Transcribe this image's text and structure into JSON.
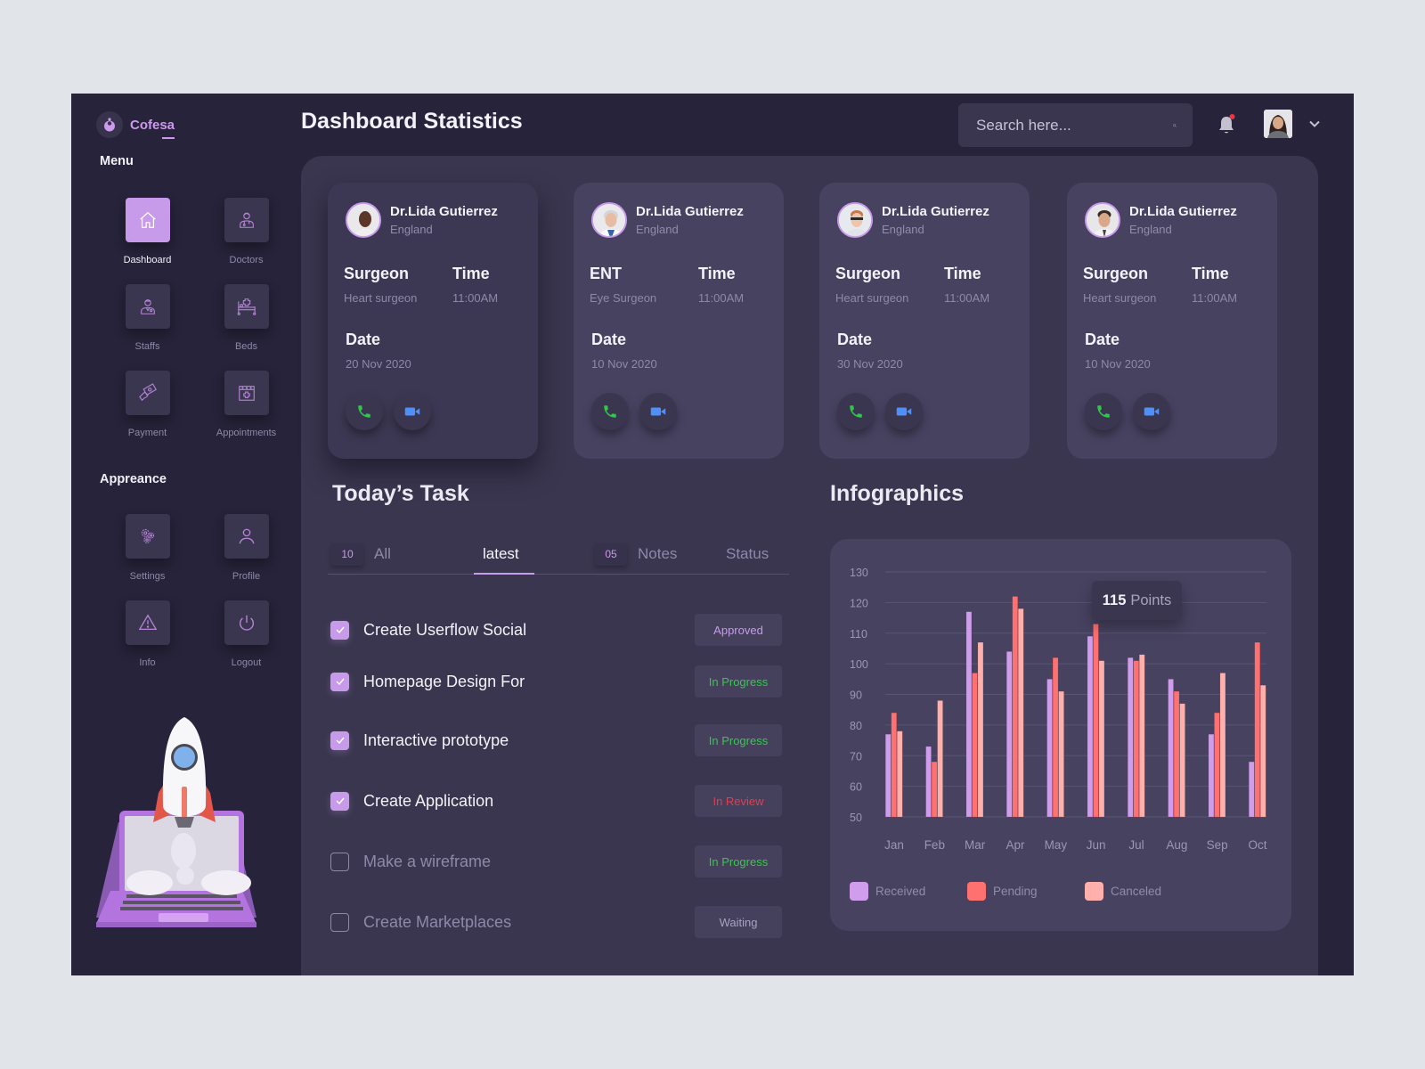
{
  "brand": {
    "name": "Cofesa"
  },
  "header": {
    "title": "Dashboard Statistics",
    "search_placeholder": "Search here..."
  },
  "sidebar": {
    "menu_label": "Menu",
    "menu_items": [
      {
        "label": "Dashboard",
        "icon": "home-icon",
        "active": true
      },
      {
        "label": "Doctors",
        "icon": "doctor-icon"
      },
      {
        "label": "Staffs",
        "icon": "staff-icon"
      },
      {
        "label": "Beds",
        "icon": "bed-icon"
      },
      {
        "label": "Payment",
        "icon": "payment-icon"
      },
      {
        "label": "Appointments",
        "icon": "calendar-icon"
      }
    ],
    "appearance_label": "Appreance",
    "appearance_items": [
      {
        "label": "Settings",
        "icon": "gear-icon"
      },
      {
        "label": "Profile",
        "icon": "user-icon"
      },
      {
        "label": "Info",
        "icon": "warning-icon"
      },
      {
        "label": "Logout",
        "icon": "power-icon"
      }
    ]
  },
  "doctors": [
    {
      "name": "Dr.Lida Gutierrez",
      "location": "England",
      "specialty": "Surgeon",
      "subspecialty": "Heart surgeon",
      "time_label": "Time",
      "time": "11:00AM",
      "date_label": "Date",
      "date": "20 Nov 2020"
    },
    {
      "name": "Dr.Lida Gutierrez",
      "location": "England",
      "specialty": "ENT",
      "subspecialty": "Eye Surgeon",
      "time_label": "Time",
      "time": "11:00AM",
      "date_label": "Date",
      "date": "10 Nov 2020"
    },
    {
      "name": "Dr.Lida Gutierrez",
      "location": "England",
      "specialty": "Surgeon",
      "subspecialty": "Heart surgeon",
      "time_label": "Time",
      "time": "11:00AM",
      "date_label": "Date",
      "date": "30 Nov 2020"
    },
    {
      "name": "Dr.Lida Gutierrez",
      "location": "England",
      "specialty": "Surgeon",
      "subspecialty": "Heart surgeon",
      "time_label": "Time",
      "time": "11:00AM",
      "date_label": "Date",
      "date": "10 Nov 2020"
    }
  ],
  "tasks": {
    "title": "Today’s Task",
    "tabs": [
      {
        "count": "10",
        "label": "All"
      },
      {
        "label": "latest",
        "active": true
      },
      {
        "count": "05",
        "label": "Notes"
      },
      {
        "label": "Status"
      }
    ],
    "items": [
      {
        "label": "Create Userflow Social",
        "done": true,
        "status": "Approved"
      },
      {
        "label": "Homepage Design For",
        "done": true,
        "status": "In Progress"
      },
      {
        "label": "Interactive prototype",
        "done": true,
        "status": "In Progress"
      },
      {
        "label": "Create Application",
        "done": true,
        "status": "In Review"
      },
      {
        "label": "Make a wireframe",
        "done": false,
        "status": "In Progress"
      },
      {
        "label": "Create Marketplaces",
        "done": false,
        "status": "Waiting"
      }
    ]
  },
  "colors": {
    "accent": "#c89aea",
    "received": "#cf9deb",
    "pending": "#ff7070",
    "canceled": "#ffb0ac",
    "approved": "#c89aea",
    "in_progress": "#35c94a",
    "in_review": "#e43d4f",
    "waiting": "#a7a3c0",
    "phone": "#2fc94a",
    "video": "#4f8ff7"
  },
  "infographics": {
    "title": "Infographics",
    "tooltip": {
      "value": "115",
      "unit": "Points"
    }
  },
  "chart_data": {
    "type": "bar",
    "title": "Infographics",
    "xlabel": "",
    "ylabel": "",
    "categories": [
      "Jan",
      "Feb",
      "Mar",
      "Apr",
      "May",
      "Jun",
      "Jul",
      "Aug",
      "Sep",
      "Oct"
    ],
    "series": [
      {
        "name": "Received",
        "values": [
          77,
          73,
          117,
          104,
          95,
          109,
          102,
          95,
          77,
          68
        ]
      },
      {
        "name": "Pending",
        "values": [
          84,
          68,
          97,
          122,
          102,
          113,
          101,
          91,
          84,
          107
        ]
      },
      {
        "name": "Canceled",
        "values": [
          78,
          88,
          107,
          118,
          91,
          101,
          103,
          87,
          97,
          93
        ]
      }
    ],
    "ylim": [
      50,
      130
    ],
    "yticks": [
      50,
      60,
      70,
      80,
      90,
      100,
      110,
      120,
      130
    ],
    "grid": true,
    "legend_position": "bottom",
    "annotations": [
      {
        "category": "Jun",
        "text": "115 Points"
      }
    ]
  }
}
